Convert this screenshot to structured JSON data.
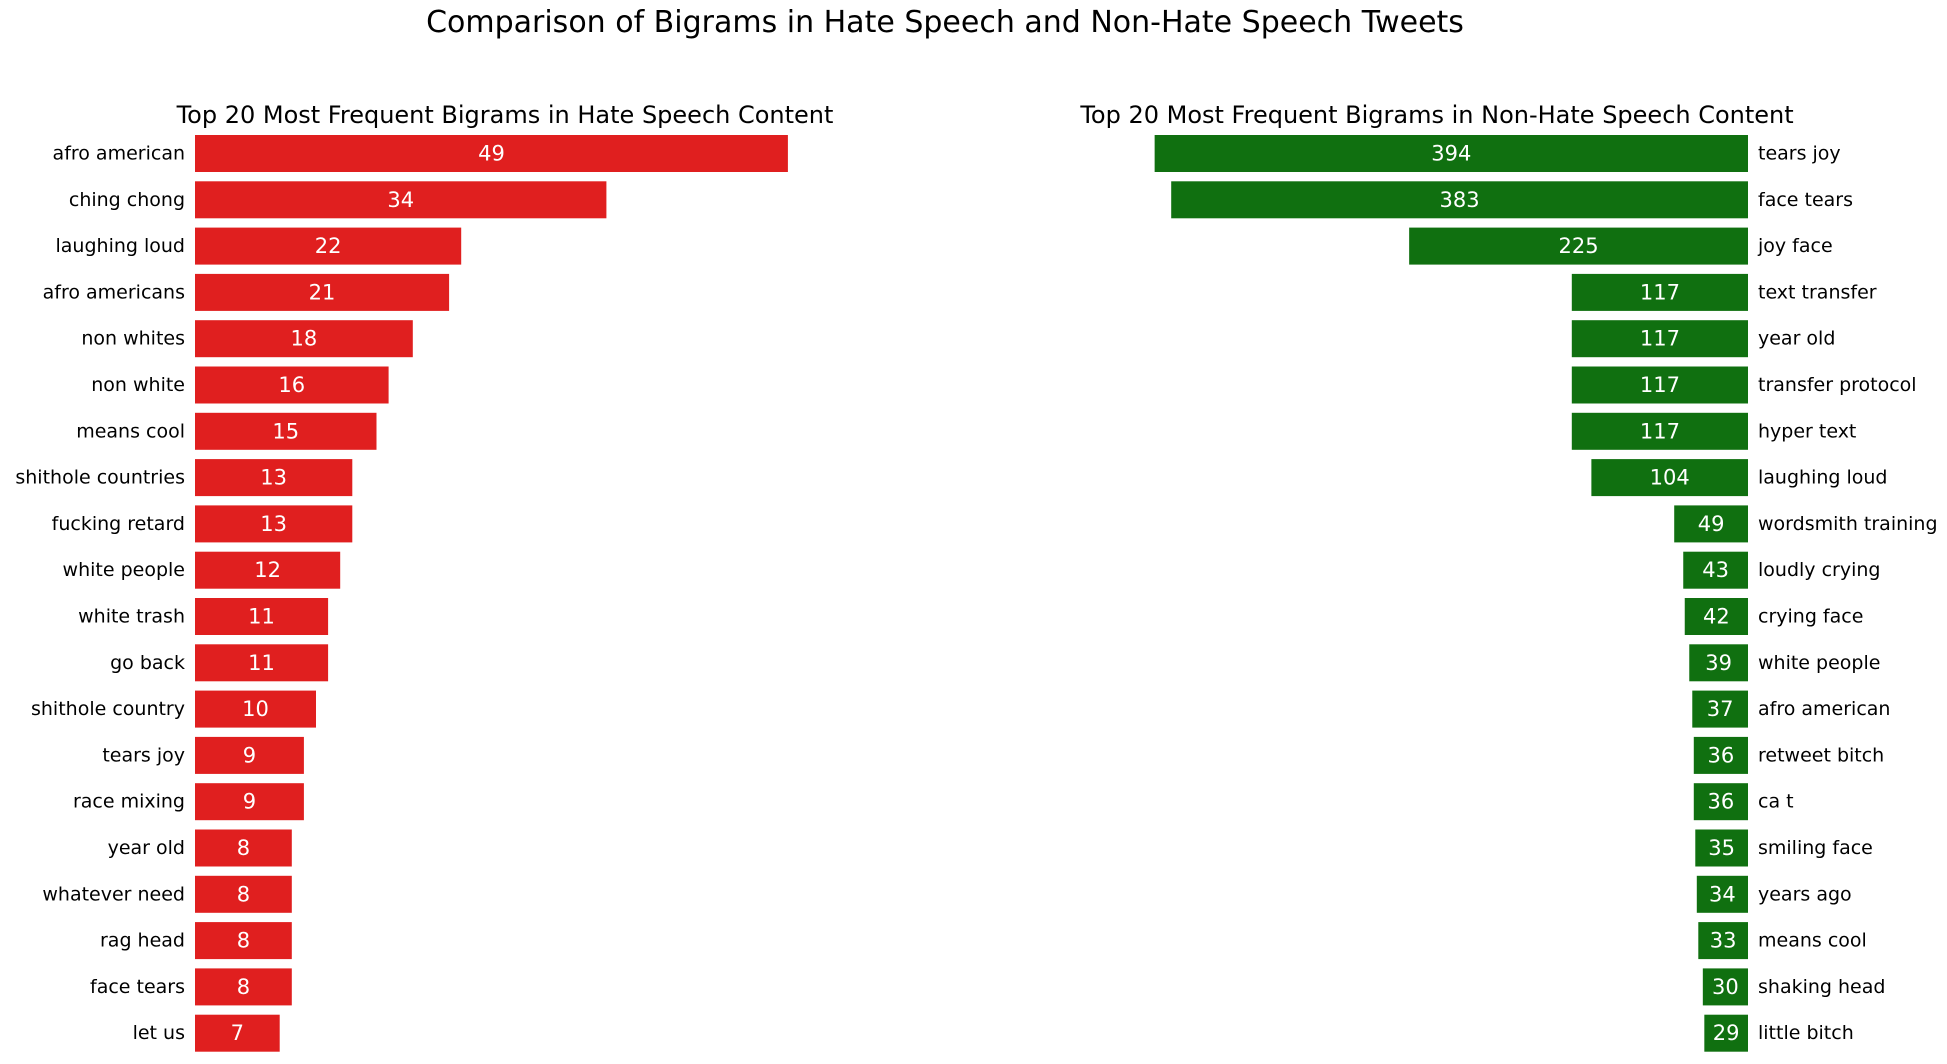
{
  "figure": {
    "title": "Comparison of Bigrams in Hate Speech and Non-Hate Speech Tweets"
  },
  "chart_data": [
    {
      "type": "bar",
      "orientation": "horizontal",
      "title": "Top 20 Most Frequent Bigrams in Hate Speech Content",
      "xlabel": "",
      "ylabel": "",
      "color": "#e01f1f",
      "xlim": [
        0,
        58
      ],
      "grid": false,
      "categories": [
        "afro american",
        "ching chong",
        "laughing loud",
        "afro americans",
        "non whites",
        "non white",
        "means cool",
        "shithole countries",
        "fucking retard",
        "white people",
        "white trash",
        "go back",
        "shithole country",
        "tears joy",
        "race mixing",
        "year old",
        "whatever need",
        "rag head",
        "face tears",
        "let us"
      ],
      "values": [
        49,
        34,
        22,
        21,
        18,
        16,
        15,
        13,
        13,
        12,
        11,
        11,
        10,
        9,
        9,
        8,
        8,
        8,
        8,
        7
      ]
    },
    {
      "type": "bar",
      "orientation": "horizontal",
      "title": "Top 20 Most Frequent Bigrams in Non-Hate Speech Content",
      "xlabel": "",
      "ylabel": "",
      "color": "#107010",
      "xlim": [
        0,
        470
      ],
      "x_inverted": true,
      "labels_side": "right",
      "grid": false,
      "categories": [
        "tears joy",
        "face tears",
        "joy face",
        "text transfer",
        "year old",
        "transfer protocol",
        "hyper text",
        "laughing loud",
        "wordsmith training",
        "loudly crying",
        "crying face",
        "white people",
        "afro american",
        "retweet bitch",
        "ca t",
        "smiling face",
        "years ago",
        "means cool",
        "shaking head",
        "little bitch"
      ],
      "values": [
        394,
        383,
        225,
        117,
        117,
        117,
        117,
        104,
        49,
        43,
        42,
        39,
        37,
        36,
        36,
        35,
        34,
        33,
        30,
        29
      ]
    }
  ]
}
